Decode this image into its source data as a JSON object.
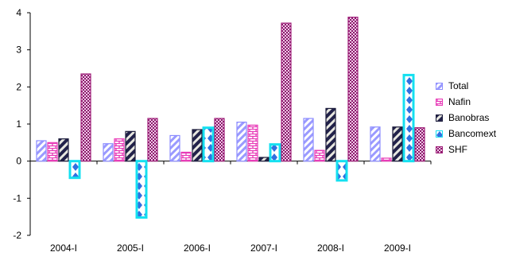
{
  "chart_data": {
    "type": "bar",
    "categories": [
      "2004-I",
      "2005-I",
      "2006-I",
      "2007-I",
      "2008-I",
      "2009-I"
    ],
    "series": [
      {
        "name": "Total",
        "values": [
          0.55,
          0.47,
          0.69,
          1.05,
          1.15,
          0.92
        ],
        "color": "#8c8cff",
        "pattern": "diag-light"
      },
      {
        "name": "Nafin",
        "values": [
          0.5,
          0.6,
          0.24,
          0.97,
          0.29,
          0.08
        ],
        "color": "#e83ab7",
        "pattern": "brick"
      },
      {
        "name": "Banobras",
        "values": [
          0.6,
          0.8,
          0.85,
          0.1,
          1.42,
          0.92
        ],
        "color": "#1a1a3a",
        "pattern": "diag-dark"
      },
      {
        "name": "Bancomext",
        "values": [
          -0.45,
          -1.52,
          0.9,
          0.45,
          -0.52,
          2.32
        ],
        "color": "#14e0f0",
        "pattern": "diamond"
      },
      {
        "name": "SHF",
        "values": [
          2.35,
          1.15,
          1.15,
          3.72,
          3.88,
          0.9
        ],
        "color": "#a0207a",
        "pattern": "checker"
      }
    ],
    "yticks": [
      4,
      3,
      2,
      1,
      0,
      -1,
      -2
    ],
    "ylim": [
      -2,
      4
    ],
    "grid": false,
    "legend": "right"
  }
}
